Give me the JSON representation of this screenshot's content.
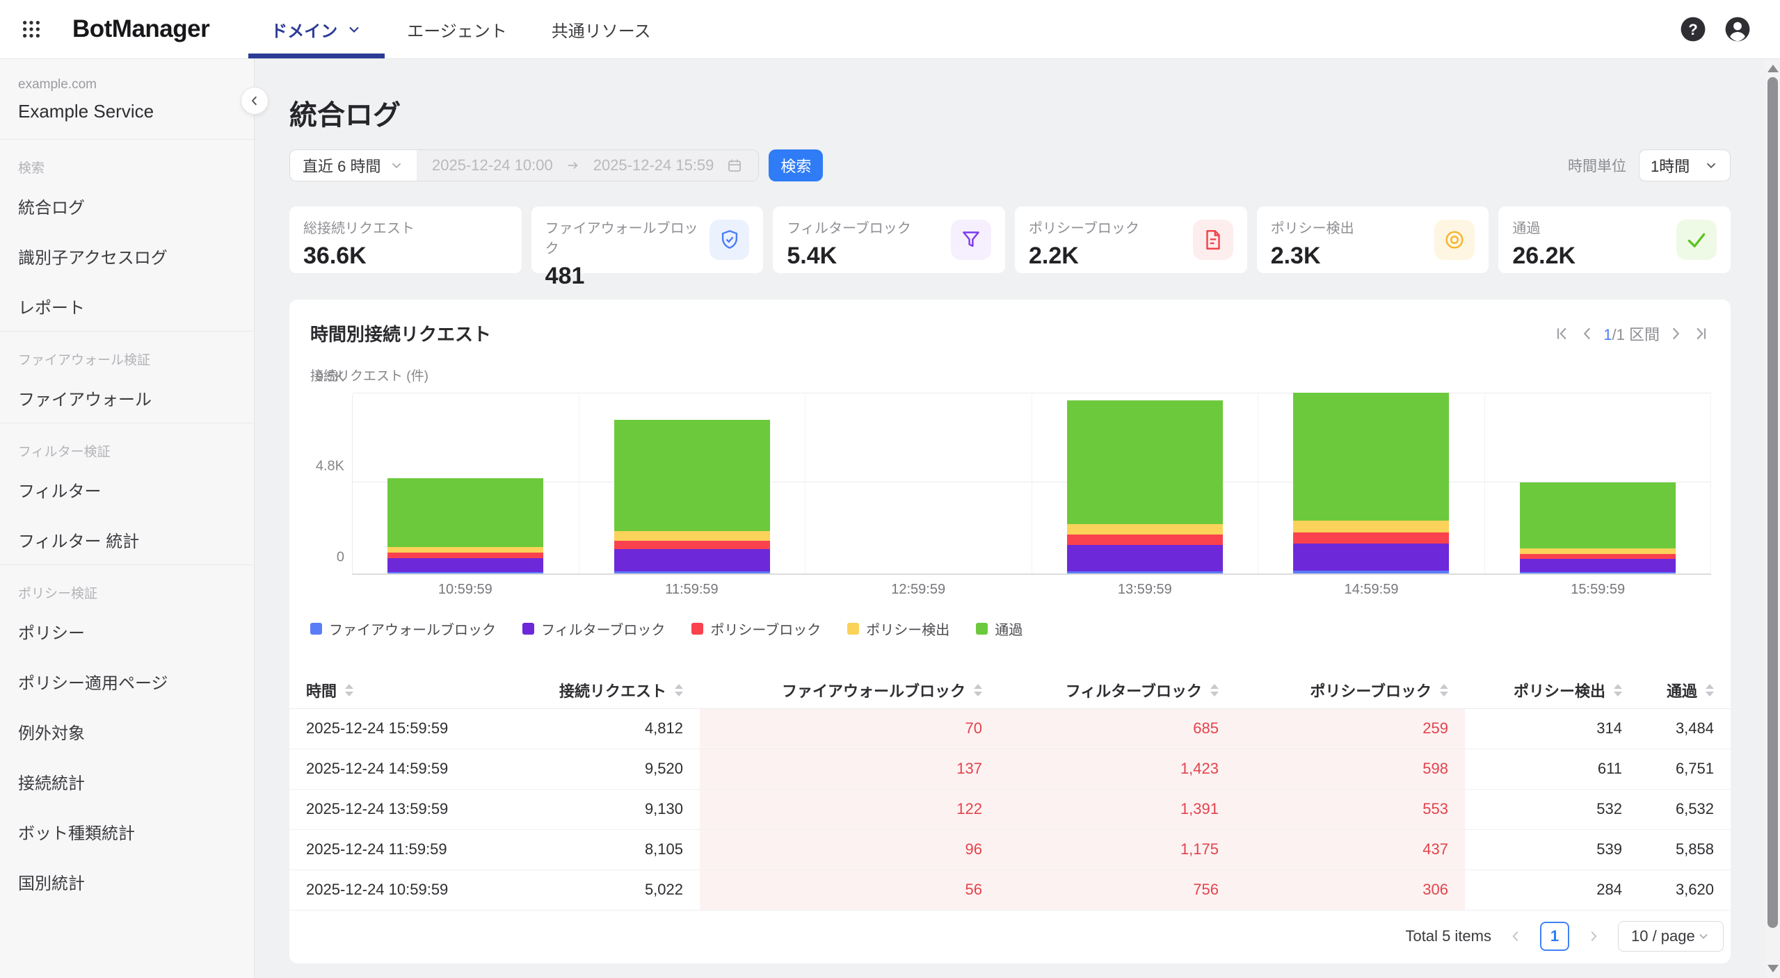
{
  "brand": "BotManager",
  "nav": {
    "tabs": [
      {
        "label": "ドメイン",
        "active": true,
        "caret": true
      },
      {
        "label": "エージェント",
        "active": false,
        "caret": false
      },
      {
        "label": "共通リソース",
        "active": false,
        "caret": false
      }
    ]
  },
  "sidebar": {
    "domain": "example.com",
    "service": "Example Service",
    "sections": [
      {
        "title": "検索",
        "items": [
          "統合ログ",
          "識別子アクセスログ",
          "レポート"
        ]
      },
      {
        "title": "ファイアウォール検証",
        "items": [
          "ファイアウォール"
        ]
      },
      {
        "title": "フィルター検証",
        "items": [
          "フィルター",
          "フィルター 統計"
        ]
      },
      {
        "title": "ポリシー検証",
        "items": [
          "ポリシー",
          "ポリシー適用ページ",
          "例外対象",
          "接続統計",
          "ボット種類統計",
          "国別統計"
        ]
      }
    ]
  },
  "page_title": "統合ログ",
  "filters": {
    "preset": "直近 6 時間",
    "date_from": "2025-12-24 10:00",
    "date_to": "2025-12-24 15:59",
    "search": "検索",
    "unit_label": "時間単位",
    "unit_value": "1時間"
  },
  "stats": [
    {
      "label": "総接続リクエスト",
      "value": "36.6K",
      "icon": null,
      "color": null,
      "bg": null
    },
    {
      "label": "ファイアウォールブロック",
      "value": "481",
      "icon": "shield-check",
      "color": "#4D7DF6",
      "bg": "#EBF2FE"
    },
    {
      "label": "フィルターブロック",
      "value": "5.4K",
      "icon": "funnel",
      "color": "#7C3AED",
      "bg": "#F6EFFE"
    },
    {
      "label": "ポリシーブロック",
      "value": "2.2K",
      "icon": "document",
      "color": "#EF4348",
      "bg": "#FDEDED"
    },
    {
      "label": "ポリシー検出",
      "value": "2.3K",
      "icon": "detect",
      "color": "#F6B42C",
      "bg": "#FEF6E2"
    },
    {
      "label": "通過",
      "value": "26.2K",
      "icon": "check",
      "color": "#58C322",
      "bg": "#EFFAE6"
    }
  ],
  "chart_data": {
    "type": "bar",
    "stacked": true,
    "title": "時間別接続リクエスト",
    "pagination": {
      "current": "1",
      "rest": "/1 区間"
    },
    "ylabel": "接続リクエスト (件)",
    "categories": [
      "10:59:59",
      "11:59:59",
      "12:59:59",
      "13:59:59",
      "14:59:59",
      "15:59:59"
    ],
    "series": [
      {
        "name": "ファイアウォールブロック",
        "color": "#5B7CF7",
        "values": [
          56,
          96,
          null,
          122,
          137,
          70
        ]
      },
      {
        "name": "フィルターブロック",
        "color": "#6D28D9",
        "values": [
          756,
          1175,
          null,
          1391,
          1423,
          685
        ]
      },
      {
        "name": "ポリシーブロック",
        "color": "#F9424E",
        "values": [
          306,
          437,
          null,
          553,
          598,
          259
        ]
      },
      {
        "name": "ポリシー検出",
        "color": "#FBD25A",
        "values": [
          284,
          539,
          null,
          532,
          611,
          314
        ]
      },
      {
        "name": "通過",
        "color": "#6CC93C",
        "values": [
          3620,
          5858,
          null,
          6532,
          6751,
          3484
        ]
      }
    ],
    "ymax": 9520,
    "yticks": [
      {
        "label": "0",
        "value": 0
      },
      {
        "label": "4.8K",
        "value": 4800
      },
      {
        "label": "9.5K",
        "value": 9500
      }
    ],
    "legend_position": "bottom",
    "grid": true
  },
  "table": {
    "columns": [
      {
        "label": "時間",
        "align": "left",
        "highlight": false
      },
      {
        "label": "接続リクエスト",
        "align": "right",
        "highlight": false
      },
      {
        "label": "ファイアウォールブロック",
        "align": "right",
        "highlight": true
      },
      {
        "label": "フィルターブロック",
        "align": "right",
        "highlight": true
      },
      {
        "label": "ポリシーブロック",
        "align": "right",
        "highlight": true
      },
      {
        "label": "ポリシー検出",
        "align": "right",
        "highlight": false
      },
      {
        "label": "通過",
        "align": "right",
        "highlight": false
      }
    ],
    "rows": [
      [
        "2025-12-24 15:59:59",
        "4,812",
        "70",
        "685",
        "259",
        "314",
        "3,484"
      ],
      [
        "2025-12-24 14:59:59",
        "9,520",
        "137",
        "1,423",
        "598",
        "611",
        "6,751"
      ],
      [
        "2025-12-24 13:59:59",
        "9,130",
        "122",
        "1,391",
        "553",
        "532",
        "6,532"
      ],
      [
        "2025-12-24 11:59:59",
        "8,105",
        "96",
        "1,175",
        "437",
        "539",
        "5,858"
      ],
      [
        "2025-12-24 10:59:59",
        "5,022",
        "56",
        "756",
        "306",
        "284",
        "3,620"
      ]
    ],
    "footer": {
      "total": "Total 5 items",
      "page": "1",
      "page_size": "10 / page"
    }
  },
  "icons": {
    "nav_left": "grid-icon",
    "nav_right": [
      "help-icon",
      "user-icon"
    ],
    "sidebar": "chevron-left-icon",
    "date_field": "calendar-icon",
    "chart_pager": [
      "first-page-icon",
      "chevron-left-icon",
      "chevron-right-icon",
      "last-page-icon"
    ]
  },
  "colors": {
    "nav_active": "#2C3B96",
    "accent_blue": "#2F7CF6",
    "table_negative": "#E2434B",
    "table_negative_bg": "#FDF2F2"
  }
}
